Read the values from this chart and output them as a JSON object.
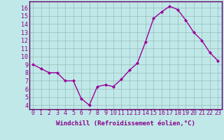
{
  "x": [
    0,
    1,
    2,
    3,
    4,
    5,
    6,
    7,
    8,
    9,
    10,
    11,
    12,
    13,
    14,
    15,
    16,
    17,
    18,
    19,
    20,
    21,
    22,
    23
  ],
  "y": [
    9.0,
    8.5,
    8.0,
    8.0,
    7.0,
    7.0,
    4.8,
    4.0,
    6.3,
    6.5,
    6.3,
    7.2,
    8.3,
    9.2,
    11.8,
    14.7,
    15.5,
    16.2,
    15.8,
    14.5,
    13.0,
    12.0,
    10.5,
    9.5
  ],
  "line_color": "#990099",
  "marker": "D",
  "marker_size": 2.0,
  "bg_color": "#c0e8e8",
  "grid_color": "#99bbbb",
  "xlabel": "Windchill (Refroidissement éolien,°C)",
  "yticks": [
    4,
    5,
    6,
    7,
    8,
    9,
    10,
    11,
    12,
    13,
    14,
    15,
    16
  ],
  "xlim": [
    -0.5,
    23.5
  ],
  "ylim": [
    3.5,
    16.8
  ],
  "xlabel_fontsize": 6.5,
  "tick_fontsize": 6.0,
  "label_color": "#880088",
  "spine_color": "#660066",
  "lw": 1.0
}
